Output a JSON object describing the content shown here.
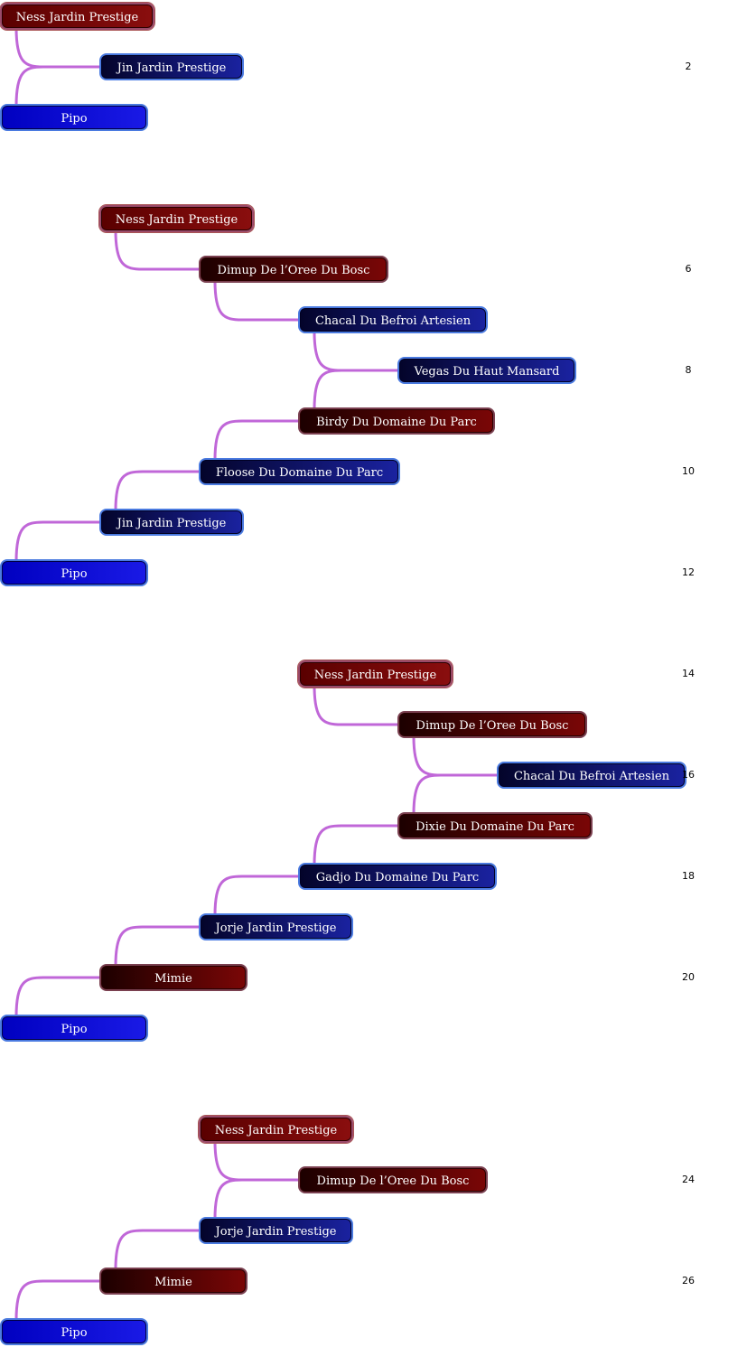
{
  "diagrams": [
    {
      "nodes": [
        {
          "label": "Ness Jardin Prestige",
          "color": "red"
        },
        {
          "label": "Jin Jardin Prestige",
          "color": "dblue"
        },
        {
          "label": "Pipo",
          "color": "blue"
        }
      ],
      "generation_labels": [
        "2"
      ]
    },
    {
      "nodes": [
        {
          "label": "Ness Jardin Prestige",
          "color": "red"
        },
        {
          "label": "Dimup De l’Oree Du Bosc",
          "color": "dred"
        },
        {
          "label": "Chacal Du Befroi Artesien",
          "color": "dblue"
        },
        {
          "label": "Vegas Du Haut Mansard",
          "color": "dblue"
        },
        {
          "label": "Birdy Du Domaine Du Parc",
          "color": "dred"
        },
        {
          "label": "Floose Du Domaine Du Parc",
          "color": "dblue"
        },
        {
          "label": "Jin Jardin Prestige",
          "color": "dblue"
        },
        {
          "label": "Pipo",
          "color": "blue"
        }
      ],
      "generation_labels": [
        "6",
        "8",
        "10",
        "12"
      ]
    },
    {
      "nodes": [
        {
          "label": "Ness Jardin Prestige",
          "color": "red"
        },
        {
          "label": "Dimup De l’Oree Du Bosc",
          "color": "dred"
        },
        {
          "label": "Chacal Du Befroi Artesien",
          "color": "dblue"
        },
        {
          "label": "Dixie Du Domaine Du Parc",
          "color": "dred"
        },
        {
          "label": "Gadjo Du Domaine Du Parc",
          "color": "dblue"
        },
        {
          "label": "Jorje Jardin Prestige",
          "color": "dblue"
        },
        {
          "label": "Mimie",
          "color": "dred"
        },
        {
          "label": "Pipo",
          "color": "blue"
        }
      ],
      "generation_labels": [
        "14",
        "16",
        "18",
        "20"
      ]
    },
    {
      "nodes": [
        {
          "label": "Ness Jardin Prestige",
          "color": "red"
        },
        {
          "label": "Dimup De l’Oree Du Bosc",
          "color": "dred"
        },
        {
          "label": "Jorje Jardin Prestige",
          "color": "dblue"
        },
        {
          "label": "Mimie",
          "color": "dred"
        },
        {
          "label": "Pipo",
          "color": "blue"
        }
      ],
      "generation_labels": [
        "24",
        "26"
      ]
    }
  ],
  "colors": {
    "link": "#c067d8",
    "red": "#8a0e0e",
    "dred": "#5a0404",
    "dblue": "#0a0a60",
    "blue": "#0000d8"
  }
}
